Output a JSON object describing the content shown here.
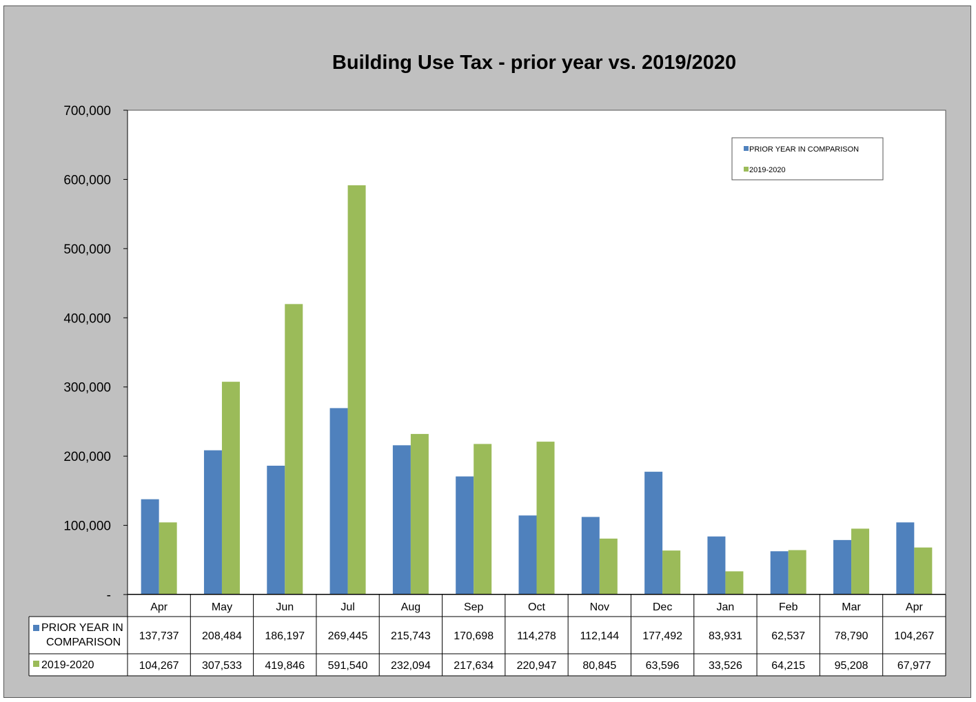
{
  "chart_data": {
    "type": "bar",
    "title": "Building Use Tax - prior year vs. 2019/2020",
    "categories": [
      "Apr",
      "May",
      "Jun",
      "Jul",
      "Aug",
      "Sep",
      "Oct",
      "Nov",
      "Dec",
      "Jan",
      "Feb",
      "Mar",
      "Apr"
    ],
    "series": [
      {
        "name": "PRIOR YEAR IN COMPARISON",
        "table_label": [
          "PRIOR YEAR IN",
          "COMPARISON"
        ],
        "color": "#4f81bd",
        "values": [
          137737,
          208484,
          186197,
          269445,
          215743,
          170698,
          114278,
          112144,
          177492,
          83931,
          62537,
          78790,
          104267
        ],
        "labels": [
          "137,737",
          "208,484",
          "186,197",
          "269,445",
          "215,743",
          "170,698",
          "114,278",
          "112,144",
          "177,492",
          "83,931",
          "62,537",
          "78,790",
          "104,267"
        ]
      },
      {
        "name": "2019-2020",
        "table_label": [
          "2019-2020"
        ],
        "color": "#9bbb59",
        "values": [
          104267,
          307533,
          419846,
          591540,
          232094,
          217634,
          220947,
          80845,
          63596,
          33526,
          64215,
          95208,
          67977
        ],
        "labels": [
          "104,267",
          "307,533",
          "419,846",
          "591,540",
          "232,094",
          "217,634",
          "220,947",
          "80,845",
          "63,596",
          "33,526",
          "64,215",
          "95,208",
          "67,977"
        ]
      }
    ],
    "ylim": [
      0,
      700000
    ],
    "yticks": [
      0,
      100000,
      200000,
      300000,
      400000,
      500000,
      600000,
      700000
    ],
    "ytick_labels": [
      "-",
      "100,000",
      "200,000",
      "300,000",
      "400,000",
      "500,000",
      "600,000",
      "700,000"
    ],
    "legend": "top-right",
    "grid": false,
    "data_table": true
  }
}
